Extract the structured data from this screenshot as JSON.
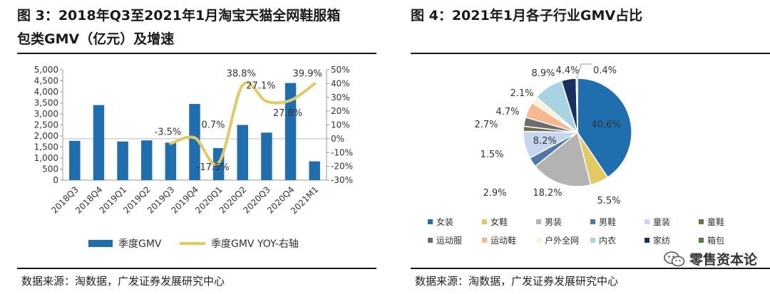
{
  "left": {
    "title_line1": "图 3：2018年Q3至2021年1月淘宝天猫全网鞋服箱",
    "title_line2": "包类GMV（亿元）及增速",
    "source": "数据来源：淘数据，广发证券发展研究中心"
  },
  "right": {
    "title_line1": "图 4：2021年1月各子行业GMV占比",
    "source": "数据来源：淘数据，广发证券发展研究中心"
  },
  "watermark": {
    "text": "零售资本论",
    "icon": "wechat-icon"
  },
  "colors": {
    "bar": "#1f6fae",
    "line": "#e3c866",
    "text": "#1a1a1a"
  },
  "chart_data": [
    {
      "type": "bar",
      "categories": [
        "2018Q3",
        "2018Q4",
        "2019Q1",
        "2019Q2",
        "2019Q3",
        "2019Q4",
        "2020Q1",
        "2020Q2",
        "2020Q3",
        "2020Q4",
        "2021M1"
      ],
      "series": [
        {
          "name": "季度GMV",
          "axis": "left",
          "type": "bar",
          "values": [
            1780,
            3400,
            1750,
            1800,
            1700,
            3450,
            1450,
            2500,
            2150,
            4400,
            850
          ]
        },
        {
          "name": "季度GMV YOY-右轴",
          "axis": "right",
          "type": "line",
          "values": [
            null,
            null,
            null,
            null,
            -3.5,
            0.7,
            -17.5,
            38.8,
            27.1,
            27.8,
            39.9
          ]
        }
      ],
      "data_labels": [
        {
          "index": 4,
          "text": "-3.5%"
        },
        {
          "index": 5,
          "text": "0.7%"
        },
        {
          "index": 6,
          "text": "-17.5%"
        },
        {
          "index": 7,
          "text": "38.8%"
        },
        {
          "index": 8,
          "text": "27.1%"
        },
        {
          "index": 9,
          "text": "27.8%"
        },
        {
          "index": 10,
          "text": "39.9%"
        }
      ],
      "ylim_left": [
        0,
        5000
      ],
      "ylim_right": [
        -30,
        50
      ],
      "left_ticks": [
        "0",
        "500",
        "1,000",
        "1,500",
        "2,000",
        "2,500",
        "3,000",
        "3,500",
        "4,000",
        "4,500",
        "5,000"
      ],
      "right_ticks": [
        "-30%",
        "-20%",
        "-10%",
        "0%",
        "10%",
        "20%",
        "30%",
        "40%",
        "50%"
      ],
      "legend": [
        "季度GMV",
        "季度GMV YOY-右轴"
      ],
      "legend_position": "bottom"
    },
    {
      "type": "pie",
      "labels": [
        "女装",
        "女鞋",
        "男装",
        "男鞋",
        "童装",
        "童鞋",
        "运动服",
        "运动鞋",
        "户外全网",
        "内衣",
        "家纺",
        "箱包"
      ],
      "values": [
        40.6,
        5.5,
        18.2,
        2.9,
        8.2,
        1.5,
        2.7,
        4.7,
        2.1,
        8.9,
        4.4,
        0.4
      ],
      "value_labels": [
        "40.6%",
        "5.5%",
        "18.2%",
        "2.9%",
        "8.2%",
        "1.5%",
        "2.7%",
        "4.7%",
        "2.1%",
        "8.9%",
        "4.4%",
        "0.4%"
      ],
      "colors": [
        "#1f6fae",
        "#e3c866",
        "#b3b3b3",
        "#4f78a8",
        "#c6d6ee",
        "#6f6f4a",
        "#6d6d6d",
        "#f6b88f",
        "#fdf1dc",
        "#a7d4e0",
        "#17305f",
        "#4f7f3f"
      ],
      "legend_position": "bottom"
    }
  ]
}
